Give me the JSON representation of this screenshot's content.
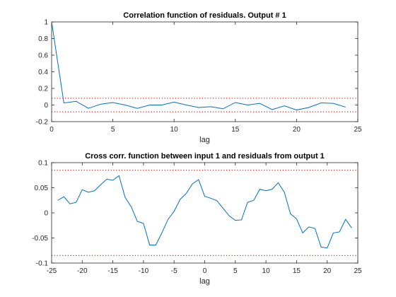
{
  "colors": {
    "line": "#0072BD",
    "confidence": "#D62728",
    "axis": "#262626"
  },
  "chart_data": [
    {
      "type": "line",
      "title": "Correlation function of residuals. Output # 1",
      "xlabel": "lag",
      "ylabel": "",
      "xlim": [
        0,
        25
      ],
      "ylim": [
        -0.2,
        1
      ],
      "xticks": [
        0,
        5,
        10,
        15,
        20,
        25
      ],
      "xtick_labels": [
        "0",
        "5",
        "10",
        "15",
        "20",
        "25"
      ],
      "yticks": [
        -0.2,
        0,
        0.2,
        0.4,
        0.6,
        0.8,
        1
      ],
      "ytick_labels": [
        "-0.2",
        "0",
        "0.2",
        "0.4",
        "0.6",
        "0.8",
        "1"
      ],
      "grid": false,
      "series": [
        {
          "x": [
            0,
            1,
            2,
            3,
            4,
            5,
            6,
            7,
            8,
            9,
            10,
            11,
            12,
            13,
            14,
            15,
            16,
            17,
            18,
            19,
            20,
            21,
            22,
            23,
            24
          ],
          "values": [
            1.0,
            0.025,
            0.045,
            -0.04,
            0.01,
            0.03,
            0.0,
            -0.04,
            0.0,
            0.0,
            0.035,
            0.0,
            -0.03,
            -0.02,
            -0.045,
            0.03,
            0.0,
            0.02,
            -0.055,
            -0.01,
            -0.06,
            -0.03,
            0.025,
            0.02,
            -0.025
          ]
        }
      ],
      "confidence_bounds": [
        0.082,
        -0.082
      ]
    },
    {
      "type": "line",
      "title": "Cross corr. function between input 1 and residuals from output 1",
      "xlabel": "lag",
      "ylabel": "",
      "xlim": [
        -25,
        25
      ],
      "ylim": [
        -0.1,
        0.1
      ],
      "xticks": [
        -25,
        -20,
        -15,
        -10,
        -5,
        0,
        5,
        10,
        15,
        20,
        25
      ],
      "xtick_labels": [
        "-25",
        "-20",
        "-15",
        "-10",
        "-5",
        "0",
        "5",
        "10",
        "15",
        "20",
        "25"
      ],
      "yticks": [
        -0.1,
        -0.05,
        0,
        0.05,
        0.1
      ],
      "ytick_labels": [
        "-0.1",
        "-0.05",
        "0",
        "0.05",
        "0.1"
      ],
      "grid": false,
      "series": [
        {
          "x": [
            -24,
            -23,
            -22,
            -21,
            -20,
            -19,
            -18,
            -17,
            -16,
            -15,
            -14,
            -13,
            -12,
            -11,
            -10,
            -9,
            -8,
            -7,
            -6,
            -5,
            -4,
            -3,
            -2,
            -1,
            0,
            1,
            2,
            3,
            4,
            5,
            6,
            7,
            8,
            9,
            10,
            11,
            12,
            13,
            14,
            15,
            16,
            17,
            18,
            19,
            20,
            21,
            22,
            23,
            24
          ],
          "values": [
            0.025,
            0.032,
            0.018,
            0.021,
            0.046,
            0.041,
            0.044,
            0.056,
            0.067,
            0.065,
            0.074,
            0.031,
            0.012,
            -0.017,
            -0.021,
            -0.064,
            -0.064,
            -0.04,
            -0.013,
            0.003,
            0.027,
            0.039,
            0.058,
            0.066,
            0.033,
            0.029,
            0.024,
            0.009,
            -0.006,
            -0.015,
            -0.014,
            0.021,
            0.025,
            0.047,
            0.044,
            0.047,
            0.06,
            0.041,
            -0.002,
            -0.012,
            -0.04,
            -0.028,
            -0.031,
            -0.068,
            -0.07,
            -0.04,
            -0.038,
            -0.013,
            -0.03
          ]
        }
      ],
      "confidence_bounds": [
        0.085,
        -0.085
      ]
    }
  ]
}
